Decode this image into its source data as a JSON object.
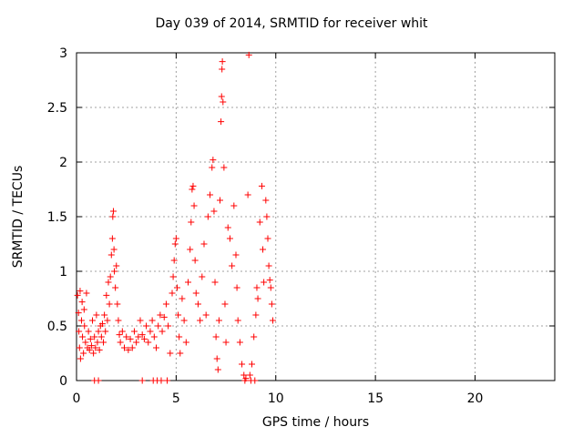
{
  "chart_data": {
    "type": "scatter",
    "title": "Day 039 of 2014, SRMTID for receiver whit",
    "xlabel": "GPS time / hours",
    "ylabel": "SRMTID / TECUs",
    "xlim": [
      0,
      24
    ],
    "ylim": [
      0,
      3
    ],
    "xticks": [
      0,
      5,
      10,
      15,
      20
    ],
    "yticks": [
      0,
      0.5,
      1,
      1.5,
      2,
      2.5,
      3
    ],
    "ytick_labels": [
      "0",
      "0.5",
      "1",
      "1.5",
      "2",
      "2.5",
      "3"
    ],
    "grid": true,
    "marker": "+",
    "color": "#ff0000",
    "series": [
      {
        "name": "SRMTID",
        "points": [
          [
            0.05,
            0.78
          ],
          [
            0.1,
            0.62
          ],
          [
            0.12,
            0.45
          ],
          [
            0.15,
            0.3
          ],
          [
            0.18,
            0.82
          ],
          [
            0.2,
            0.2
          ],
          [
            0.25,
            0.55
          ],
          [
            0.28,
            0.72
          ],
          [
            0.3,
            0.4
          ],
          [
            0.35,
            0.25
          ],
          [
            0.38,
            0.65
          ],
          [
            0.4,
            0.5
          ],
          [
            0.45,
            0.35
          ],
          [
            0.5,
            0.8
          ],
          [
            0.55,
            0.3
          ],
          [
            0.6,
            0.45
          ],
          [
            0.65,
            0.28
          ],
          [
            0.7,
            0.38
          ],
          [
            0.75,
            0.32
          ],
          [
            0.8,
            0.55
          ],
          [
            0.85,
            0.25
          ],
          [
            0.9,
            0.4
          ],
          [
            0.95,
            0.3
          ],
          [
            1.0,
            0.6
          ],
          [
            1.05,
            0.35
          ],
          [
            1.1,
            0.45
          ],
          [
            1.15,
            0.28
          ],
          [
            1.2,
            0.5
          ],
          [
            1.25,
            0.4
          ],
          [
            1.3,
            0.52
          ],
          [
            1.35,
            0.35
          ],
          [
            1.4,
            0.6
          ],
          [
            1.45,
            0.45
          ],
          [
            1.5,
            0.78
          ],
          [
            1.55,
            0.55
          ],
          [
            1.6,
            0.9
          ],
          [
            1.65,
            0.7
          ],
          [
            1.7,
            0.95
          ],
          [
            1.75,
            1.15
          ],
          [
            1.8,
            1.3
          ],
          [
            1.82,
            1.5
          ],
          [
            1.85,
            1.55
          ],
          [
            1.88,
            1.2
          ],
          [
            1.9,
            1.0
          ],
          [
            1.95,
            0.85
          ],
          [
            2.0,
            1.05
          ],
          [
            2.05,
            0.7
          ],
          [
            2.1,
            0.55
          ],
          [
            2.15,
            0.42
          ],
          [
            2.2,
            0.35
          ],
          [
            2.3,
            0.45
          ],
          [
            2.4,
            0.3
          ],
          [
            2.5,
            0.4
          ],
          [
            2.6,
            0.28
          ],
          [
            2.7,
            0.38
          ],
          [
            2.8,
            0.3
          ],
          [
            2.9,
            0.45
          ],
          [
            3.0,
            0.35
          ],
          [
            3.1,
            0.4
          ],
          [
            3.2,
            0.55
          ],
          [
            3.3,
            0.42
          ],
          [
            3.4,
            0.38
          ],
          [
            3.5,
            0.5
          ],
          [
            3.6,
            0.35
          ],
          [
            3.7,
            0.45
          ],
          [
            3.8,
            0.55
          ],
          [
            3.9,
            0.4
          ],
          [
            4.0,
            0.3
          ],
          [
            4.1,
            0.5
          ],
          [
            4.2,
            0.6
          ],
          [
            4.3,
            0.45
          ],
          [
            4.4,
            0.58
          ],
          [
            4.5,
            0.7
          ],
          [
            4.6,
            0.5
          ],
          [
            4.7,
            0.25
          ],
          [
            4.8,
            0.8
          ],
          [
            4.85,
            0.95
          ],
          [
            4.9,
            1.1
          ],
          [
            4.95,
            1.25
          ],
          [
            5.0,
            1.3
          ],
          [
            5.05,
            0.85
          ],
          [
            5.1,
            0.6
          ],
          [
            5.15,
            0.4
          ],
          [
            5.2,
            0.25
          ],
          [
            5.3,
            0.75
          ],
          [
            5.4,
            0.55
          ],
          [
            5.5,
            0.35
          ],
          [
            5.6,
            0.9
          ],
          [
            5.7,
            1.2
          ],
          [
            5.75,
            1.45
          ],
          [
            5.8,
            1.75
          ],
          [
            5.85,
            1.78
          ],
          [
            5.9,
            1.6
          ],
          [
            5.95,
            1.1
          ],
          [
            6.0,
            0.8
          ],
          [
            6.1,
            0.7
          ],
          [
            6.2,
            0.55
          ],
          [
            6.3,
            0.95
          ],
          [
            6.4,
            1.25
          ],
          [
            6.5,
            0.6
          ],
          [
            6.6,
            1.5
          ],
          [
            6.7,
            1.7
          ],
          [
            6.8,
            1.95
          ],
          [
            6.85,
            2.02
          ],
          [
            6.9,
            1.55
          ],
          [
            6.95,
            0.9
          ],
          [
            7.0,
            0.4
          ],
          [
            7.05,
            0.2
          ],
          [
            7.1,
            0.1
          ],
          [
            7.15,
            0.55
          ],
          [
            7.2,
            1.65
          ],
          [
            7.25,
            2.37
          ],
          [
            7.28,
            2.6
          ],
          [
            7.3,
            2.85
          ],
          [
            7.32,
            2.92
          ],
          [
            7.35,
            2.55
          ],
          [
            7.4,
            1.95
          ],
          [
            7.45,
            0.7
          ],
          [
            7.5,
            0.35
          ],
          [
            7.6,
            1.4
          ],
          [
            7.7,
            1.3
          ],
          [
            7.8,
            1.05
          ],
          [
            7.9,
            1.6
          ],
          [
            8.0,
            1.15
          ],
          [
            8.05,
            0.85
          ],
          [
            8.1,
            0.55
          ],
          [
            8.2,
            0.35
          ],
          [
            8.3,
            0.15
          ],
          [
            8.4,
            0.05
          ],
          [
            8.5,
            0.02
          ],
          [
            8.6,
            1.7
          ],
          [
            8.65,
            2.98
          ],
          [
            8.7,
            0.05
          ],
          [
            8.8,
            0.15
          ],
          [
            8.9,
            0.4
          ],
          [
            9.0,
            0.6
          ],
          [
            9.05,
            0.85
          ],
          [
            9.1,
            0.75
          ],
          [
            9.2,
            1.45
          ],
          [
            9.3,
            1.78
          ],
          [
            9.35,
            1.2
          ],
          [
            9.4,
            0.9
          ],
          [
            9.5,
            1.65
          ],
          [
            9.55,
            1.5
          ],
          [
            9.6,
            1.3
          ],
          [
            9.65,
            1.05
          ],
          [
            9.7,
            0.92
          ],
          [
            9.75,
            0.85
          ],
          [
            9.8,
            0.7
          ],
          [
            9.85,
            0.55
          ],
          [
            0.9,
            0.0
          ],
          [
            1.1,
            0.0
          ],
          [
            3.3,
            0.0
          ],
          [
            3.85,
            0.0
          ],
          [
            4.05,
            0.0
          ],
          [
            4.25,
            0.0
          ],
          [
            4.55,
            0.0
          ],
          [
            8.45,
            0.0
          ],
          [
            8.75,
            0.0
          ],
          [
            8.95,
            0.0
          ]
        ]
      }
    ]
  }
}
